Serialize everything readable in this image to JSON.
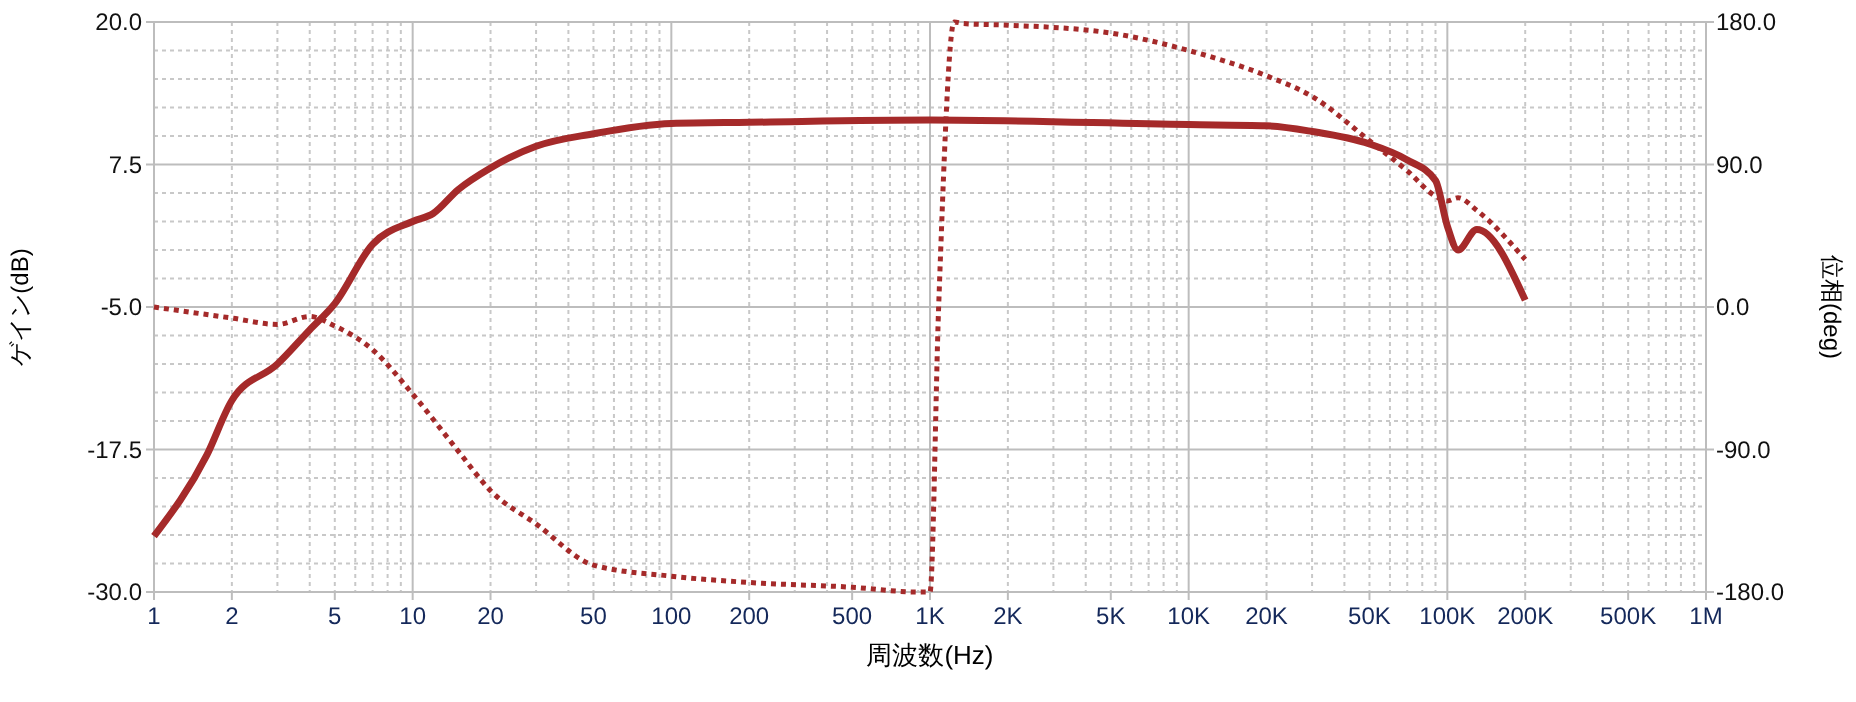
{
  "chart_data": {
    "type": "line",
    "xlabel": "周波数(Hz)",
    "ylabel": "ゲイン(dB)",
    "y2label": "位相(deg)",
    "log": "x",
    "grid": true,
    "xlim": [
      1,
      1000000
    ],
    "xticks": [
      1,
      2,
      5,
      10,
      20,
      50,
      100,
      200,
      500,
      {
        "value": 1000,
        "label": "1K"
      },
      {
        "value": 2000,
        "label": "2K"
      },
      {
        "value": 5000,
        "label": "5K"
      },
      {
        "value": 10000,
        "label": "10K"
      },
      {
        "value": 20000,
        "label": "20K"
      },
      {
        "value": 50000,
        "label": "50K"
      },
      {
        "value": 100000,
        "label": "100K"
      },
      {
        "value": 200000,
        "label": "200K"
      },
      {
        "value": 500000,
        "label": "500K"
      },
      {
        "value": 1000000,
        "label": "1M"
      }
    ],
    "ylim": [
      -30,
      20
    ],
    "yticks": [
      {
        "value": -30,
        "label": "-30.0"
      },
      {
        "value": -17.5,
        "label": "-17.5"
      },
      {
        "value": -5,
        "label": "-5.0"
      },
      {
        "value": 7.5,
        "label": "7.5"
      },
      {
        "value": 20,
        "label": "20.0"
      }
    ],
    "y2lim": [
      -180,
      180
    ],
    "y2ticks": [
      {
        "value": -180,
        "label": "-180.0"
      },
      {
        "value": -90,
        "label": "-90.0"
      },
      {
        "value": 0,
        "label": "0.0"
      },
      {
        "value": 90,
        "label": "90.0"
      },
      {
        "value": 180,
        "label": "180.0"
      }
    ],
    "series": [
      {
        "color": "#a52a2a",
        "line_style": "solid",
        "x": [
          1,
          1.6,
          2,
          3,
          4,
          5,
          7,
          10,
          12,
          15,
          20,
          30,
          50,
          100,
          200,
          1000,
          10000,
          20000,
          30000,
          50000,
          70000,
          90000,
          100000,
          110000,
          130000,
          200000
        ],
        "values": [
          -25.1,
          -18,
          -13.2,
          -10,
          -7,
          -4.7,
          0.5,
          2.5,
          3.2,
          5.3,
          7.2,
          9.1,
          10.2,
          11.1,
          11.2,
          11.4,
          11,
          10.9,
          10.4,
          9.3,
          7.9,
          6.1,
          2.1,
          0,
          1.8,
          -4.4
        ]
      },
      {
        "color": "#a52a2a",
        "line_style": "dotted",
        "axis": "y2",
        "x": [
          1,
          2,
          3,
          4,
          5,
          7,
          10,
          15,
          20,
          30,
          50,
          100,
          200,
          500,
          900,
          1000,
          1080,
          1240,
          1350,
          2000,
          5000,
          10000,
          20000,
          30000,
          50000,
          70000,
          90000,
          100000,
          110000,
          130000,
          200000
        ],
        "values": [
          0,
          -7,
          -11,
          -6,
          -12,
          -27,
          -55,
          -91,
          -116,
          -137,
          -163,
          -170,
          -174,
          -177,
          -180,
          -180,
          0,
          180,
          179,
          178,
          173,
          162,
          146,
          133,
          105,
          86,
          70,
          67,
          69,
          61,
          30
        ]
      }
    ]
  }
}
